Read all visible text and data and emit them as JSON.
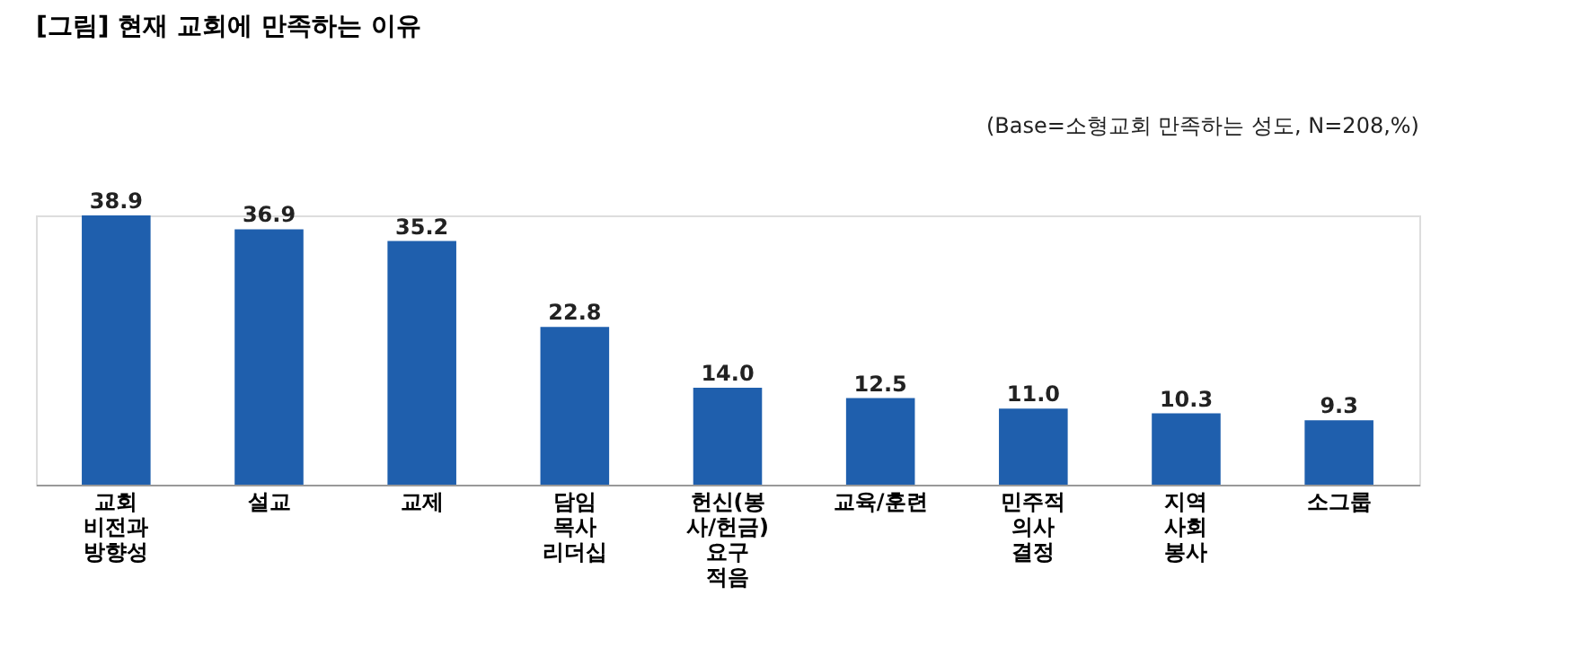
{
  "chart_data": {
    "type": "bar",
    "title": "[그림] 현재 교회에 만족하는 이유",
    "annotations": [
      "(Base=소형교회 만족하는 성도, N=208,%)"
    ],
    "categories": [
      "교회 비전과 방향성",
      "설교",
      "교제",
      "담임 목사 리더십",
      "헌신(봉사/헌금) 요구 적음",
      "교육/훈련",
      "민주적 의사 결정",
      "지역 사회 봉사",
      "소그룹"
    ],
    "values": [
      38.9,
      36.9,
      35.2,
      22.8,
      14.0,
      12.5,
      11.0,
      10.3,
      9.3
    ],
    "value_labels": [
      "38.9",
      "36.9",
      "35.2",
      "22.8",
      "14.0",
      "12.5",
      "11.0",
      "10.3",
      "9.3"
    ],
    "color": "#1f5fad"
  }
}
